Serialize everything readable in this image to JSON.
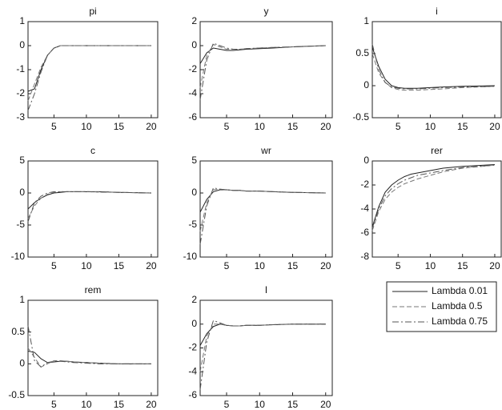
{
  "chart_data": [
    {
      "type": "line",
      "title": "pi",
      "x": [
        1,
        2,
        3,
        4,
        5,
        6,
        7,
        8,
        10,
        12,
        15,
        20
      ],
      "xlim": [
        1,
        21
      ],
      "xticks": [
        5,
        10,
        15,
        20
      ],
      "ylim": [
        -3,
        1
      ],
      "yticks": [
        -3,
        -2,
        -1,
        0,
        1
      ],
      "series": [
        {
          "name": "Lambda 0.01",
          "color": "#222222",
          "values": [
            -1.9,
            -1.8,
            -1.0,
            -0.4,
            -0.1,
            0,
            0,
            0,
            0,
            0,
            0,
            0
          ]
        },
        {
          "name": "Lambda 0.5",
          "color": "#777777",
          "values": [
            -2.3,
            -1.6,
            -0.9,
            -0.4,
            -0.1,
            0,
            0,
            0,
            0,
            0,
            0,
            0
          ]
        },
        {
          "name": "Lambda 0.75",
          "color": "#555555",
          "values": [
            -2.7,
            -2.0,
            -1.1,
            -0.4,
            -0.1,
            0,
            0,
            0,
            0,
            0,
            0,
            0
          ]
        }
      ]
    },
    {
      "type": "line",
      "title": "y",
      "x": [
        1,
        2,
        3,
        4,
        5,
        6,
        7,
        8,
        10,
        12,
        15,
        20
      ],
      "xlim": [
        1,
        21
      ],
      "xticks": [
        5,
        10,
        15,
        20
      ],
      "ylim": [
        -6,
        2
      ],
      "yticks": [
        -6,
        -4,
        -2,
        0,
        2
      ],
      "series": [
        {
          "name": "Lambda 0.01",
          "color": "#222222",
          "values": [
            -1.5,
            -0.6,
            -0.2,
            -0.3,
            -0.4,
            -0.4,
            -0.35,
            -0.3,
            -0.25,
            -0.2,
            -0.1,
            0
          ]
        },
        {
          "name": "Lambda 0.5",
          "color": "#777777",
          "values": [
            -3.5,
            -0.8,
            0.1,
            -0.1,
            -0.3,
            -0.3,
            -0.3,
            -0.25,
            -0.2,
            -0.15,
            -0.1,
            0
          ]
        },
        {
          "name": "Lambda 0.75",
          "color": "#555555",
          "values": [
            -4.5,
            -1.2,
            0.2,
            0,
            -0.2,
            -0.3,
            -0.3,
            -0.25,
            -0.2,
            -0.15,
            -0.1,
            0
          ]
        }
      ]
    },
    {
      "type": "line",
      "title": "i",
      "x": [
        1,
        2,
        3,
        4,
        5,
        6,
        7,
        8,
        10,
        12,
        15,
        20
      ],
      "xlim": [
        1,
        21
      ],
      "xticks": [
        5,
        10,
        15,
        20
      ],
      "ylim": [
        -0.5,
        1
      ],
      "yticks": [
        -0.5,
        0,
        0.5,
        1
      ],
      "series": [
        {
          "name": "Lambda 0.01",
          "color": "#222222",
          "values": [
            0.6,
            0.3,
            0.1,
            0,
            -0.03,
            -0.04,
            -0.04,
            -0.04,
            -0.03,
            -0.02,
            -0.01,
            0
          ]
        },
        {
          "name": "Lambda 0.5",
          "color": "#777777",
          "values": [
            0.5,
            0.2,
            0.05,
            -0.03,
            -0.06,
            -0.07,
            -0.07,
            -0.07,
            -0.06,
            -0.05,
            -0.03,
            -0.01
          ]
        },
        {
          "name": "Lambda 0.75",
          "color": "#555555",
          "values": [
            0.65,
            0.25,
            0.05,
            -0.02,
            -0.04,
            -0.05,
            -0.05,
            -0.05,
            -0.04,
            -0.03,
            -0.02,
            -0.01
          ]
        }
      ]
    },
    {
      "type": "line",
      "title": "c",
      "x": [
        1,
        2,
        3,
        4,
        5,
        6,
        7,
        8,
        10,
        12,
        15,
        20
      ],
      "xlim": [
        1,
        21
      ],
      "xticks": [
        5,
        10,
        15,
        20
      ],
      "ylim": [
        -10,
        5
      ],
      "yticks": [
        -10,
        -5,
        0,
        5
      ],
      "series": [
        {
          "name": "Lambda 0.01",
          "color": "#222222",
          "values": [
            -2.5,
            -1.5,
            -0.8,
            -0.3,
            0,
            0.1,
            0.2,
            0.2,
            0.2,
            0.2,
            0.1,
            0
          ]
        },
        {
          "name": "Lambda 0.5",
          "color": "#777777",
          "values": [
            -4,
            -2,
            -0.8,
            -0.2,
            0.1,
            0.2,
            0.2,
            0.2,
            0.2,
            0.15,
            0.1,
            0
          ]
        },
        {
          "name": "Lambda 0.75",
          "color": "#555555",
          "values": [
            -4.5,
            -1.5,
            -0.5,
            0,
            0.2,
            0.2,
            0.2,
            0.2,
            0.2,
            0.15,
            0.1,
            0
          ]
        }
      ]
    },
    {
      "type": "line",
      "title": "wr",
      "x": [
        1,
        2,
        3,
        4,
        5,
        6,
        7,
        8,
        10,
        12,
        15,
        20
      ],
      "xlim": [
        1,
        21
      ],
      "xticks": [
        5,
        10,
        15,
        20
      ],
      "ylim": [
        -10,
        5
      ],
      "yticks": [
        -10,
        -5,
        0,
        5
      ],
      "series": [
        {
          "name": "Lambda 0.01",
          "color": "#222222",
          "values": [
            -3,
            -1,
            0.2,
            0.5,
            0.5,
            0.4,
            0.4,
            0.3,
            0.3,
            0.2,
            0.1,
            0
          ]
        },
        {
          "name": "Lambda 0.5",
          "color": "#777777",
          "values": [
            -6,
            -1.5,
            0.5,
            0.6,
            0.5,
            0.4,
            0.4,
            0.3,
            0.3,
            0.2,
            0.1,
            0
          ]
        },
        {
          "name": "Lambda 0.75",
          "color": "#555555",
          "values": [
            -8,
            -2,
            0.8,
            0.6,
            0.5,
            0.4,
            0.4,
            0.3,
            0.3,
            0.2,
            0.1,
            0
          ]
        }
      ]
    },
    {
      "type": "line",
      "title": "rer",
      "x": [
        1,
        2,
        3,
        4,
        5,
        6,
        7,
        8,
        10,
        12,
        15,
        20
      ],
      "xlim": [
        1,
        21
      ],
      "xticks": [
        5,
        10,
        15,
        20
      ],
      "ylim": [
        -8,
        0
      ],
      "yticks": [
        -8,
        -6,
        -4,
        -2,
        0
      ],
      "series": [
        {
          "name": "Lambda 0.01",
          "color": "#222222",
          "values": [
            -5.5,
            -3.8,
            -2.6,
            -2,
            -1.6,
            -1.3,
            -1.1,
            -1,
            -0.8,
            -0.6,
            -0.45,
            -0.3
          ]
        },
        {
          "name": "Lambda 0.5",
          "color": "#777777",
          "values": [
            -5.8,
            -4.2,
            -3.2,
            -2.6,
            -2.2,
            -1.9,
            -1.7,
            -1.5,
            -1.2,
            -0.9,
            -0.6,
            -0.35
          ]
        },
        {
          "name": "Lambda 0.75",
          "color": "#555555",
          "values": [
            -5.6,
            -4,
            -2.9,
            -2.3,
            -1.9,
            -1.6,
            -1.4,
            -1.2,
            -1,
            -0.8,
            -0.55,
            -0.35
          ]
        }
      ]
    },
    {
      "type": "line",
      "title": "rem",
      "x": [
        1,
        2,
        3,
        4,
        5,
        6,
        7,
        8,
        10,
        12,
        15,
        20
      ],
      "xlim": [
        1,
        21
      ],
      "xticks": [
        5,
        10,
        15,
        20
      ],
      "ylim": [
        -0.5,
        1
      ],
      "yticks": [
        -0.5,
        0,
        0.5,
        1
      ],
      "series": [
        {
          "name": "Lambda 0.01",
          "color": "#222222",
          "values": [
            0.2,
            0.18,
            0.08,
            0.02,
            0.03,
            0.04,
            0.04,
            0.03,
            0.02,
            0.01,
            0,
            0
          ]
        },
        {
          "name": "Lambda 0.5",
          "color": "#777777",
          "values": [
            0.25,
            0.1,
            -0.05,
            0,
            0.05,
            0.05,
            0.04,
            0.03,
            0.02,
            0.01,
            0,
            0
          ]
        },
        {
          "name": "Lambda 0.75",
          "color": "#555555",
          "values": [
            0.6,
            0.05,
            -0.05,
            0.02,
            0.04,
            0.04,
            0.03,
            0.02,
            0.01,
            0,
            0,
            0
          ]
        }
      ]
    },
    {
      "type": "line",
      "title": "l",
      "x": [
        1,
        2,
        3,
        4,
        5,
        6,
        7,
        8,
        10,
        12,
        15,
        20
      ],
      "xlim": [
        1,
        21
      ],
      "xticks": [
        5,
        10,
        15,
        20
      ],
      "ylim": [
        -6,
        2
      ],
      "yticks": [
        -6,
        -4,
        -2,
        0,
        2
      ],
      "series": [
        {
          "name": "Lambda 0.01",
          "color": "#222222",
          "values": [
            -1.8,
            -0.8,
            -0.2,
            0,
            -0.1,
            -0.15,
            -0.15,
            -0.1,
            -0.1,
            -0.05,
            0,
            0
          ]
        },
        {
          "name": "Lambda 0.5",
          "color": "#777777",
          "values": [
            -4,
            -1,
            0,
            0,
            -0.1,
            -0.15,
            -0.15,
            -0.1,
            -0.1,
            -0.05,
            0,
            0
          ]
        },
        {
          "name": "Lambda 0.75",
          "color": "#555555",
          "values": [
            -5.5,
            -1.5,
            0.3,
            0.1,
            -0.1,
            -0.15,
            -0.15,
            -0.1,
            -0.1,
            -0.05,
            0,
            0
          ]
        }
      ]
    }
  ]
}
